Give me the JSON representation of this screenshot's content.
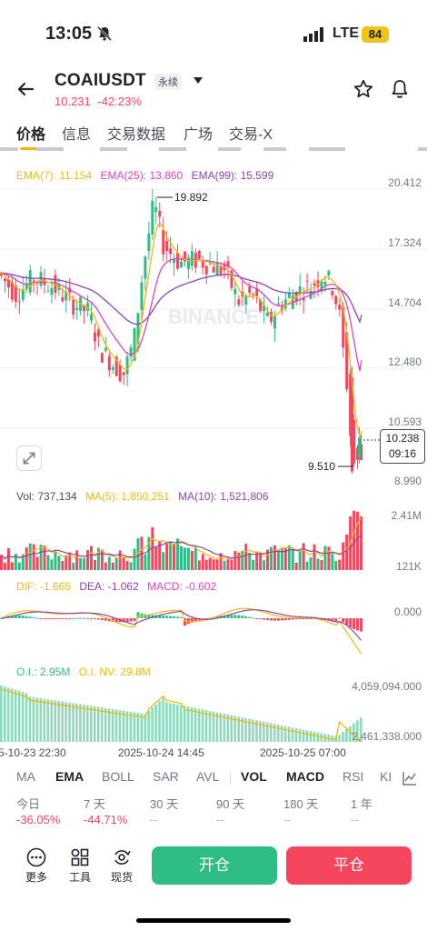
{
  "status": {
    "time": "13:05",
    "network": "LTE",
    "battery": "84"
  },
  "header": {
    "symbol": "COAIUSDT",
    "tag": "永续",
    "price": "10.231",
    "change": "-42.23%"
  },
  "tabs": [
    "价格",
    "信息",
    "交易数据",
    "广场",
    "交易-X"
  ],
  "main_chart": {
    "ema7": "EMA(7): 11.154",
    "ema25": "EMA(25): 13.860",
    "ema99": "EMA(99): 15.599",
    "y_labels": [
      "20.412",
      "17.324",
      "14.704",
      "12.480",
      "10.593",
      "8.990"
    ],
    "high_label": "19.892",
    "low_label": "9.510",
    "last_price": "10.238",
    "countdown": "09:16",
    "watermark": "BINANCE"
  },
  "volume": {
    "vol": "Vol: 737,134",
    "ma5": "MA(5): 1,850,251",
    "ma10": "MA(10): 1,521,806",
    "y_top": "2.41M",
    "y_bottom": "121K"
  },
  "macd": {
    "dif": "DIF: -1.665",
    "dea": "DEA: -1.062",
    "macd": "MACD: -0.602",
    "zero": "0.000"
  },
  "oi": {
    "oi": "O.I.: 2.95M",
    "oinv": "O.I. NV: 29.8M",
    "y_top": "4,059,094.000",
    "y_bottom": "2,461,338.000"
  },
  "x_axis": [
    "5-10-23 22:30",
    "2025-10-24 14:45",
    "2025-10-25 07:00"
  ],
  "indicator_tabs": [
    "MA",
    "EMA",
    "BOLL",
    "SAR",
    "AVL",
    "VOL",
    "MACD",
    "RSI",
    "KI"
  ],
  "performance": [
    {
      "label": "今日",
      "value": "-36.05%"
    },
    {
      "label": "7 天",
      "value": "-44.71%"
    },
    {
      "label": "30 天",
      "value": "--"
    },
    {
      "label": "90 天",
      "value": "--"
    },
    {
      "label": "180 天",
      "value": "--"
    },
    {
      "label": "1 年",
      "value": "--"
    }
  ],
  "bottom_bar": {
    "more": "更多",
    "tools": "工具",
    "spot": "现货",
    "open": "开仓",
    "close": "平仓"
  },
  "colors": {
    "up": "#2ebd85",
    "down": "#f6465d",
    "ema7": "#f0b90b",
    "ema25": "#e040c8",
    "ema99": "#8e44ad",
    "accent": "#f0b90b"
  }
}
